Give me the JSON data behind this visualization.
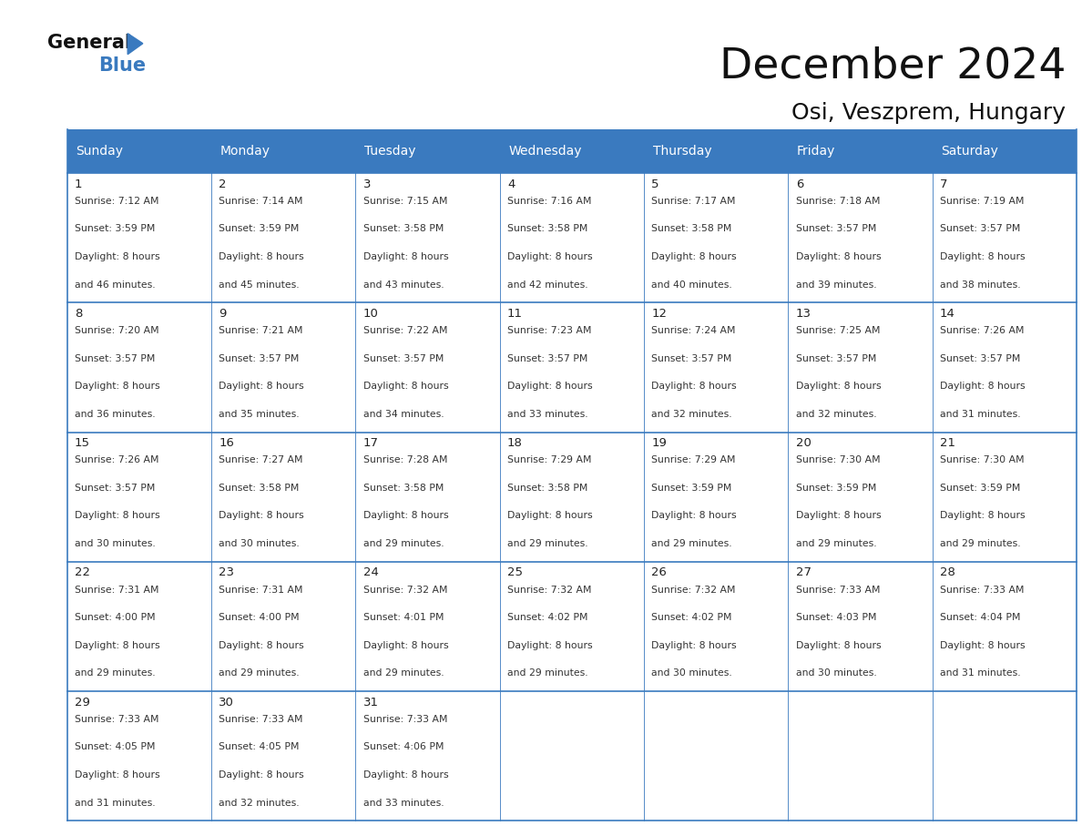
{
  "title": "December 2024",
  "subtitle": "Osi, Veszprem, Hungary",
  "header_bg": "#3a7abf",
  "header_text": "#ffffff",
  "cell_border": "#3a7abf",
  "days_of_week": [
    "Sunday",
    "Monday",
    "Tuesday",
    "Wednesday",
    "Thursday",
    "Friday",
    "Saturday"
  ],
  "calendar_data": [
    [
      {
        "day": "1",
        "sunrise": "7:12 AM",
        "sunset": "3:59 PM",
        "daylight_line1": "8 hours",
        "daylight_line2": "and 46 minutes."
      },
      {
        "day": "2",
        "sunrise": "7:14 AM",
        "sunset": "3:59 PM",
        "daylight_line1": "8 hours",
        "daylight_line2": "and 45 minutes."
      },
      {
        "day": "3",
        "sunrise": "7:15 AM",
        "sunset": "3:58 PM",
        "daylight_line1": "8 hours",
        "daylight_line2": "and 43 minutes."
      },
      {
        "day": "4",
        "sunrise": "7:16 AM",
        "sunset": "3:58 PM",
        "daylight_line1": "8 hours",
        "daylight_line2": "and 42 minutes."
      },
      {
        "day": "5",
        "sunrise": "7:17 AM",
        "sunset": "3:58 PM",
        "daylight_line1": "8 hours",
        "daylight_line2": "and 40 minutes."
      },
      {
        "day": "6",
        "sunrise": "7:18 AM",
        "sunset": "3:57 PM",
        "daylight_line1": "8 hours",
        "daylight_line2": "and 39 minutes."
      },
      {
        "day": "7",
        "sunrise": "7:19 AM",
        "sunset": "3:57 PM",
        "daylight_line1": "8 hours",
        "daylight_line2": "and 38 minutes."
      }
    ],
    [
      {
        "day": "8",
        "sunrise": "7:20 AM",
        "sunset": "3:57 PM",
        "daylight_line1": "8 hours",
        "daylight_line2": "and 36 minutes."
      },
      {
        "day": "9",
        "sunrise": "7:21 AM",
        "sunset": "3:57 PM",
        "daylight_line1": "8 hours",
        "daylight_line2": "and 35 minutes."
      },
      {
        "day": "10",
        "sunrise": "7:22 AM",
        "sunset": "3:57 PM",
        "daylight_line1": "8 hours",
        "daylight_line2": "and 34 minutes."
      },
      {
        "day": "11",
        "sunrise": "7:23 AM",
        "sunset": "3:57 PM",
        "daylight_line1": "8 hours",
        "daylight_line2": "and 33 minutes."
      },
      {
        "day": "12",
        "sunrise": "7:24 AM",
        "sunset": "3:57 PM",
        "daylight_line1": "8 hours",
        "daylight_line2": "and 32 minutes."
      },
      {
        "day": "13",
        "sunrise": "7:25 AM",
        "sunset": "3:57 PM",
        "daylight_line1": "8 hours",
        "daylight_line2": "and 32 minutes."
      },
      {
        "day": "14",
        "sunrise": "7:26 AM",
        "sunset": "3:57 PM",
        "daylight_line1": "8 hours",
        "daylight_line2": "and 31 minutes."
      }
    ],
    [
      {
        "day": "15",
        "sunrise": "7:26 AM",
        "sunset": "3:57 PM",
        "daylight_line1": "8 hours",
        "daylight_line2": "and 30 minutes."
      },
      {
        "day": "16",
        "sunrise": "7:27 AM",
        "sunset": "3:58 PM",
        "daylight_line1": "8 hours",
        "daylight_line2": "and 30 minutes."
      },
      {
        "day": "17",
        "sunrise": "7:28 AM",
        "sunset": "3:58 PM",
        "daylight_line1": "8 hours",
        "daylight_line2": "and 29 minutes."
      },
      {
        "day": "18",
        "sunrise": "7:29 AM",
        "sunset": "3:58 PM",
        "daylight_line1": "8 hours",
        "daylight_line2": "and 29 minutes."
      },
      {
        "day": "19",
        "sunrise": "7:29 AM",
        "sunset": "3:59 PM",
        "daylight_line1": "8 hours",
        "daylight_line2": "and 29 minutes."
      },
      {
        "day": "20",
        "sunrise": "7:30 AM",
        "sunset": "3:59 PM",
        "daylight_line1": "8 hours",
        "daylight_line2": "and 29 minutes."
      },
      {
        "day": "21",
        "sunrise": "7:30 AM",
        "sunset": "3:59 PM",
        "daylight_line1": "8 hours",
        "daylight_line2": "and 29 minutes."
      }
    ],
    [
      {
        "day": "22",
        "sunrise": "7:31 AM",
        "sunset": "4:00 PM",
        "daylight_line1": "8 hours",
        "daylight_line2": "and 29 minutes."
      },
      {
        "day": "23",
        "sunrise": "7:31 AM",
        "sunset": "4:00 PM",
        "daylight_line1": "8 hours",
        "daylight_line2": "and 29 minutes."
      },
      {
        "day": "24",
        "sunrise": "7:32 AM",
        "sunset": "4:01 PM",
        "daylight_line1": "8 hours",
        "daylight_line2": "and 29 minutes."
      },
      {
        "day": "25",
        "sunrise": "7:32 AM",
        "sunset": "4:02 PM",
        "daylight_line1": "8 hours",
        "daylight_line2": "and 29 minutes."
      },
      {
        "day": "26",
        "sunrise": "7:32 AM",
        "sunset": "4:02 PM",
        "daylight_line1": "8 hours",
        "daylight_line2": "and 30 minutes."
      },
      {
        "day": "27",
        "sunrise": "7:33 AM",
        "sunset": "4:03 PM",
        "daylight_line1": "8 hours",
        "daylight_line2": "and 30 minutes."
      },
      {
        "day": "28",
        "sunrise": "7:33 AM",
        "sunset": "4:04 PM",
        "daylight_line1": "8 hours",
        "daylight_line2": "and 31 minutes."
      }
    ],
    [
      {
        "day": "29",
        "sunrise": "7:33 AM",
        "sunset": "4:05 PM",
        "daylight_line1": "8 hours",
        "daylight_line2": "and 31 minutes."
      },
      {
        "day": "30",
        "sunrise": "7:33 AM",
        "sunset": "4:05 PM",
        "daylight_line1": "8 hours",
        "daylight_line2": "and 32 minutes."
      },
      {
        "day": "31",
        "sunrise": "7:33 AM",
        "sunset": "4:06 PM",
        "daylight_line1": "8 hours",
        "daylight_line2": "and 33 minutes."
      },
      null,
      null,
      null,
      null
    ]
  ]
}
